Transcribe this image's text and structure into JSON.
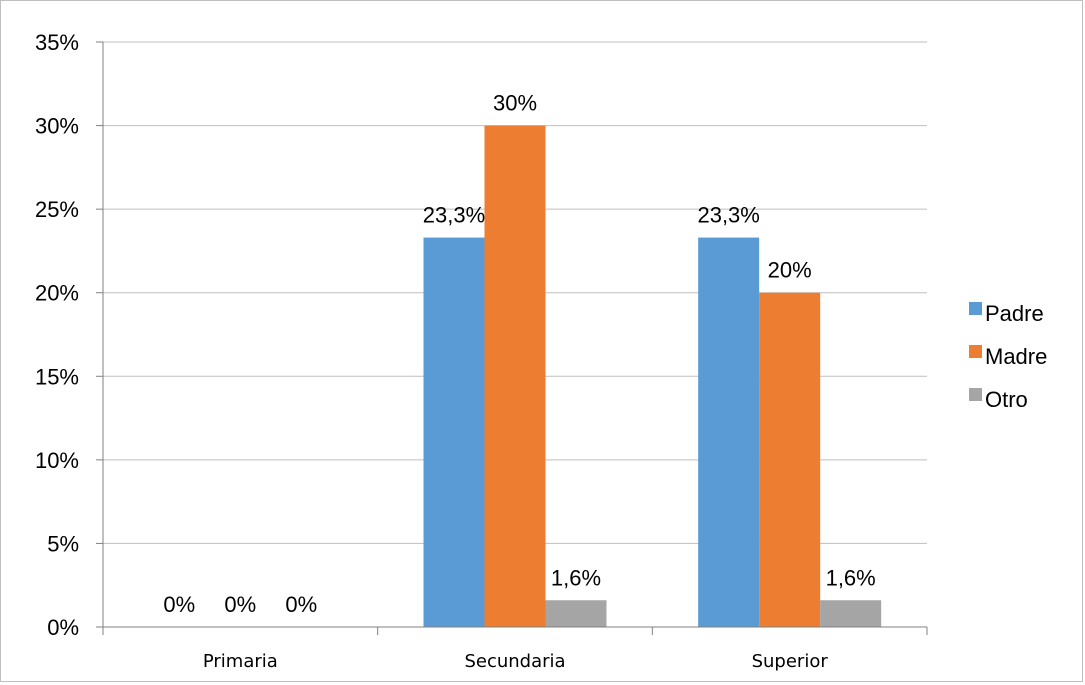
{
  "chart_data": {
    "type": "bar",
    "categories": [
      "Primaria",
      "Secundaria",
      "Superior"
    ],
    "series": [
      {
        "name": "Padre",
        "color": "#5b9bd5",
        "values": [
          0,
          23.3,
          23.3
        ],
        "labels": [
          "0%",
          "23,3%",
          "23,3%"
        ]
      },
      {
        "name": "Madre",
        "color": "#ed7d31",
        "values": [
          0,
          30,
          20
        ],
        "labels": [
          "0%",
          "30%",
          "20%"
        ]
      },
      {
        "name": "Otro",
        "color": "#a5a5a5",
        "values": [
          0,
          1.6,
          1.6
        ],
        "labels": [
          "0%",
          "1,6%",
          "1,6%"
        ]
      }
    ],
    "ylim": [
      0,
      35
    ],
    "yticks": [
      0,
      5,
      10,
      15,
      20,
      25,
      30,
      35
    ],
    "ytick_labels": [
      "0%",
      "5%",
      "10%",
      "15%",
      "20%",
      "25%",
      "30%",
      "35%"
    ],
    "grid": true,
    "legend_position": "right",
    "title": "",
    "xlabel": "",
    "ylabel": ""
  }
}
